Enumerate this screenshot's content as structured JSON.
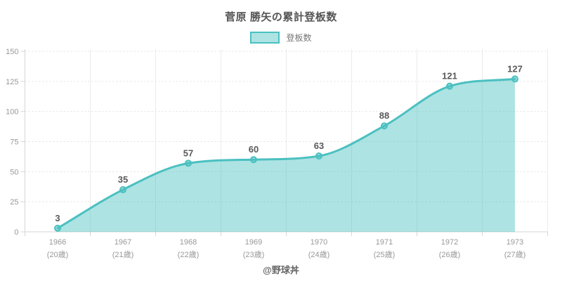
{
  "title": "菅原 勝矢の累計登板数",
  "footer": "@野球丼",
  "colors": {
    "line": "#4bc0c0",
    "area_fill": "rgba(75,192,192,0.45)",
    "marker_fill": "rgba(75,192,192,0.55)",
    "grid": "#e0e0e0",
    "axis": "#d6d6d6",
    "tick_text": "#999999",
    "title_text": "#555555",
    "data_label_text": "#595959"
  },
  "chart_data": {
    "type": "area",
    "title": "菅原 勝矢の累計登板数",
    "categories": [
      "1966",
      "1967",
      "1968",
      "1969",
      "1970",
      "1971",
      "1972",
      "1973"
    ],
    "categories_sub": [
      "(20歳)",
      "(21歳)",
      "(22歳)",
      "(23歳)",
      "(24歳)",
      "(25歳)",
      "(26歳)",
      "(27歳)"
    ],
    "series": [
      {
        "name": "登板数",
        "values": [
          3,
          35,
          57,
          60,
          63,
          88,
          121,
          127
        ]
      }
    ],
    "xlabel": "",
    "ylabel": "",
    "ylim": [
      0,
      150
    ],
    "yticks": [
      0,
      25,
      50,
      75,
      100,
      125,
      150
    ],
    "grid": "horizontal-dashed, vertical-solid",
    "legend_position": "top-center",
    "curve": "smooth-monotone",
    "data_labels": true
  }
}
